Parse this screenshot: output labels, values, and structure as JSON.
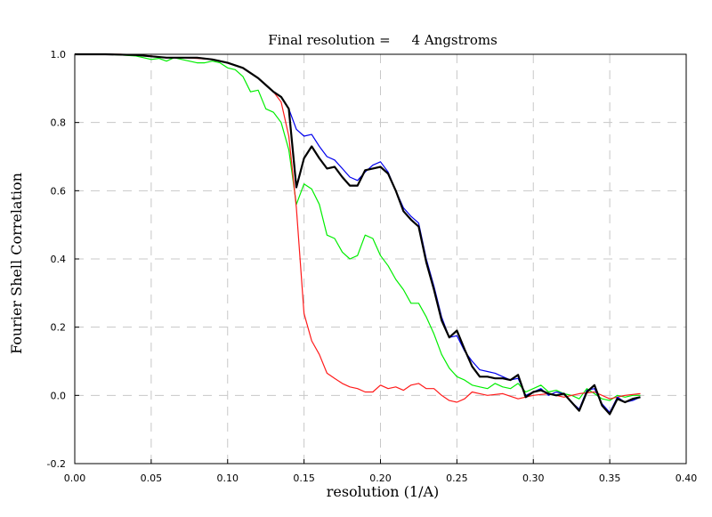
{
  "chart_data": {
    "type": "line",
    "title": "Final resolution =     4 Angstroms",
    "xlabel": "resolution (1/A)",
    "ylabel": "Fourier Shell Correlation",
    "xlim": [
      0,
      0.4
    ],
    "ylim": [
      -0.2,
      1.0
    ],
    "x_ticks": [
      "0.00",
      "0.05",
      "0.10",
      "0.15",
      "0.20",
      "0.25",
      "0.30",
      "0.35",
      "0.40"
    ],
    "y_ticks": [
      "-0.2",
      "0.0",
      "0.2",
      "0.4",
      "0.6",
      "0.8",
      "1.0"
    ],
    "grid": true,
    "series": [
      {
        "name": "fsc-green",
        "color": "#00ee00",
        "width": 1.2,
        "x": [
          0,
          0.01,
          0.02,
          0.03,
          0.04,
          0.045,
          0.05,
          0.055,
          0.06,
          0.065,
          0.07,
          0.075,
          0.08,
          0.085,
          0.09,
          0.095,
          0.1,
          0.105,
          0.11,
          0.115,
          0.12,
          0.125,
          0.13,
          0.135,
          0.14,
          0.145,
          0.15,
          0.155,
          0.16,
          0.165,
          0.17,
          0.175,
          0.18,
          0.185,
          0.19,
          0.195,
          0.2,
          0.205,
          0.21,
          0.215,
          0.22,
          0.225,
          0.23,
          0.235,
          0.24,
          0.245,
          0.25,
          0.255,
          0.26,
          0.265,
          0.27,
          0.275,
          0.28,
          0.285,
          0.29,
          0.295,
          0.3,
          0.305,
          0.31,
          0.315,
          0.32,
          0.325,
          0.33,
          0.335,
          0.34,
          0.345,
          0.35,
          0.355,
          0.36,
          0.365,
          0.37
        ],
        "y": [
          1.0,
          1.0,
          1.0,
          0.998,
          0.995,
          0.99,
          0.985,
          0.988,
          0.98,
          0.99,
          0.985,
          0.98,
          0.975,
          0.975,
          0.98,
          0.975,
          0.96,
          0.955,
          0.935,
          0.89,
          0.895,
          0.84,
          0.83,
          0.8,
          0.72,
          0.56,
          0.62,
          0.605,
          0.56,
          0.47,
          0.46,
          0.42,
          0.4,
          0.41,
          0.47,
          0.46,
          0.41,
          0.38,
          0.34,
          0.31,
          0.27,
          0.27,
          0.23,
          0.18,
          0.12,
          0.08,
          0.055,
          0.045,
          0.03,
          0.025,
          0.02,
          0.035,
          0.025,
          0.02,
          0.035,
          0.01,
          0.02,
          0.03,
          0.01,
          0.015,
          0.005,
          0.0,
          -0.01,
          0.02,
          0.005,
          -0.01,
          -0.015,
          0.0,
          -0.005,
          0.0,
          0.0
        ]
      },
      {
        "name": "fsc-red",
        "color": "#ff1a1a",
        "width": 1.2,
        "x": [
          0,
          0.01,
          0.02,
          0.03,
          0.04,
          0.05,
          0.06,
          0.07,
          0.08,
          0.09,
          0.1,
          0.11,
          0.12,
          0.125,
          0.13,
          0.135,
          0.14,
          0.145,
          0.15,
          0.155,
          0.16,
          0.165,
          0.17,
          0.175,
          0.18,
          0.185,
          0.19,
          0.195,
          0.2,
          0.205,
          0.21,
          0.215,
          0.22,
          0.225,
          0.23,
          0.235,
          0.24,
          0.245,
          0.25,
          0.255,
          0.26,
          0.265,
          0.27,
          0.28,
          0.29,
          0.3,
          0.31,
          0.32,
          0.33,
          0.34,
          0.35,
          0.36,
          0.37
        ],
        "y": [
          1.0,
          1.0,
          1.0,
          1.0,
          0.998,
          0.995,
          0.99,
          0.99,
          0.988,
          0.985,
          0.975,
          0.96,
          0.93,
          0.91,
          0.89,
          0.86,
          0.76,
          0.55,
          0.24,
          0.16,
          0.12,
          0.065,
          0.05,
          0.035,
          0.025,
          0.02,
          0.01,
          0.01,
          0.03,
          0.02,
          0.025,
          0.015,
          0.03,
          0.035,
          0.02,
          0.02,
          0.0,
          -0.015,
          -0.02,
          -0.01,
          0.01,
          0.005,
          0.0,
          0.005,
          -0.01,
          0.0,
          0.005,
          -0.005,
          0.005,
          0.01,
          -0.01,
          0.0,
          0.005
        ]
      },
      {
        "name": "fsc-blue",
        "color": "#0000ee",
        "width": 1.2,
        "x": [
          0,
          0.02,
          0.04,
          0.06,
          0.08,
          0.09,
          0.1,
          0.11,
          0.12,
          0.125,
          0.13,
          0.135,
          0.14,
          0.145,
          0.15,
          0.155,
          0.16,
          0.165,
          0.17,
          0.175,
          0.18,
          0.185,
          0.19,
          0.195,
          0.2,
          0.205,
          0.21,
          0.215,
          0.22,
          0.225,
          0.23,
          0.235,
          0.24,
          0.245,
          0.25,
          0.255,
          0.26,
          0.265,
          0.27,
          0.275,
          0.28,
          0.285,
          0.29,
          0.295,
          0.3,
          0.305,
          0.31,
          0.315,
          0.32,
          0.325,
          0.33,
          0.335,
          0.34,
          0.345,
          0.35,
          0.355,
          0.36,
          0.365,
          0.37
        ],
        "y": [
          1.0,
          1.0,
          0.998,
          0.99,
          0.99,
          0.985,
          0.975,
          0.96,
          0.93,
          0.91,
          0.89,
          0.875,
          0.84,
          0.78,
          0.76,
          0.765,
          0.73,
          0.7,
          0.69,
          0.665,
          0.64,
          0.63,
          0.655,
          0.675,
          0.685,
          0.655,
          0.6,
          0.55,
          0.525,
          0.505,
          0.4,
          0.32,
          0.23,
          0.17,
          0.175,
          0.13,
          0.1,
          0.075,
          0.07,
          0.065,
          0.055,
          0.045,
          0.05,
          0.0,
          0.01,
          0.02,
          0.0,
          0.01,
          0.005,
          -0.02,
          -0.04,
          0.015,
          0.02,
          -0.025,
          -0.05,
          -0.005,
          -0.02,
          -0.015,
          -0.005
        ]
      },
      {
        "name": "fsc-black",
        "color": "#000000",
        "width": 2.2,
        "x": [
          0,
          0.02,
          0.04,
          0.06,
          0.08,
          0.09,
          0.1,
          0.11,
          0.12,
          0.125,
          0.13,
          0.135,
          0.14,
          0.145,
          0.15,
          0.155,
          0.16,
          0.165,
          0.17,
          0.175,
          0.18,
          0.185,
          0.19,
          0.195,
          0.2,
          0.205,
          0.21,
          0.215,
          0.22,
          0.225,
          0.23,
          0.235,
          0.24,
          0.245,
          0.25,
          0.255,
          0.26,
          0.265,
          0.27,
          0.275,
          0.28,
          0.285,
          0.29,
          0.295,
          0.3,
          0.305,
          0.31,
          0.315,
          0.32,
          0.325,
          0.33,
          0.335,
          0.34,
          0.345,
          0.35,
          0.355,
          0.36,
          0.365,
          0.37
        ],
        "y": [
          1.0,
          1.0,
          0.998,
          0.99,
          0.99,
          0.985,
          0.975,
          0.96,
          0.93,
          0.91,
          0.89,
          0.875,
          0.84,
          0.61,
          0.695,
          0.73,
          0.695,
          0.665,
          0.67,
          0.64,
          0.615,
          0.615,
          0.66,
          0.665,
          0.67,
          0.65,
          0.6,
          0.54,
          0.515,
          0.495,
          0.39,
          0.31,
          0.22,
          0.17,
          0.19,
          0.135,
          0.085,
          0.055,
          0.055,
          0.05,
          0.05,
          0.045,
          0.06,
          -0.005,
          0.01,
          0.015,
          0.005,
          0.0,
          0.005,
          -0.02,
          -0.045,
          0.01,
          0.03,
          -0.03,
          -0.055,
          -0.01,
          -0.02,
          -0.01,
          -0.005
        ]
      }
    ]
  }
}
